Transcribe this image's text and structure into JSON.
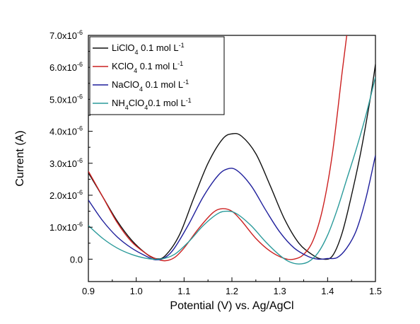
{
  "chart_data": {
    "type": "line",
    "xlabel": "Potential (V) vs. Ag/AgCl",
    "ylabel": "Current (A)",
    "xlim": [
      0.9,
      1.5
    ],
    "ylim": [
      -7e-07,
      7e-06
    ],
    "x_ticks": [
      {
        "value": 0.9,
        "label": "0.9"
      },
      {
        "value": 1.0,
        "label": "1.0"
      },
      {
        "value": 1.1,
        "label": "1.1"
      },
      {
        "value": 1.2,
        "label": "1.2"
      },
      {
        "value": 1.3,
        "label": "1.3"
      },
      {
        "value": 1.4,
        "label": "1.4"
      },
      {
        "value": 1.5,
        "label": "1.5"
      }
    ],
    "y_ticks": [
      {
        "value": 0.0,
        "mant": "0.0",
        "exp": ""
      },
      {
        "value": 1e-06,
        "mant": "1.0x10",
        "exp": "-6"
      },
      {
        "value": 2e-06,
        "mant": "2.0x10",
        "exp": "-6"
      },
      {
        "value": 3e-06,
        "mant": "3.0x10",
        "exp": "-6"
      },
      {
        "value": 4e-06,
        "mant": "4.0x10",
        "exp": "-6"
      },
      {
        "value": 5e-06,
        "mant": "5.0x10",
        "exp": "-6"
      },
      {
        "value": 6e-06,
        "mant": "6.0x10",
        "exp": "-6"
      },
      {
        "value": 7e-06,
        "mant": "7.0x10",
        "exp": "-6"
      }
    ],
    "legend_placement": "top-left",
    "series": [
      {
        "name": "LiClO4 0.1 mol L-1",
        "legend_parts": [
          {
            "t": "LiClO"
          },
          {
            "t": "4",
            "sub": true
          },
          {
            "t": " 0.1 mol L"
          },
          {
            "t": "-1",
            "sup": true
          }
        ],
        "color": "#111111",
        "points": [
          [
            0.9,
            2.7e-06
          ],
          [
            0.93,
            1.95e-06
          ],
          [
            0.96,
            1.2e-06
          ],
          [
            0.99,
            6e-07
          ],
          [
            1.02,
            1.8e-07
          ],
          [
            1.04,
            2e-08
          ],
          [
            1.06,
            1e-07
          ],
          [
            1.09,
            7.5e-07
          ],
          [
            1.12,
            1.9e-06
          ],
          [
            1.15,
            3e-06
          ],
          [
            1.18,
            3.75e-06
          ],
          [
            1.2,
            3.92e-06
          ],
          [
            1.22,
            3.85e-06
          ],
          [
            1.25,
            3.3e-06
          ],
          [
            1.28,
            2.3e-06
          ],
          [
            1.31,
            1.25e-06
          ],
          [
            1.34,
            5e-07
          ],
          [
            1.37,
            1.2e-07
          ],
          [
            1.39,
            0.0
          ],
          [
            1.41,
            1e-07
          ],
          [
            1.43,
            8e-07
          ],
          [
            1.45,
            2e-06
          ],
          [
            1.47,
            3.4e-06
          ],
          [
            1.49,
            5.1e-06
          ],
          [
            1.5,
            6.1e-06
          ]
        ]
      },
      {
        "name": "KClO4 0.1 mol L-1",
        "legend_parts": [
          {
            "t": "KClO"
          },
          {
            "t": "4",
            "sub": true
          },
          {
            "t": " 0.1 mol L"
          },
          {
            "t": "-1",
            "sup": true
          }
        ],
        "color": "#cc2020",
        "points": [
          [
            0.9,
            2.75e-06
          ],
          [
            0.93,
            1.95e-06
          ],
          [
            0.96,
            1.15e-06
          ],
          [
            0.99,
            5.5e-07
          ],
          [
            1.02,
            1.8e-07
          ],
          [
            1.04,
            2e-08
          ],
          [
            1.06,
            -5e-08
          ],
          [
            1.08,
            5e-08
          ],
          [
            1.1,
            3.5e-07
          ],
          [
            1.13,
            9.5e-07
          ],
          [
            1.16,
            1.45e-06
          ],
          [
            1.18,
            1.58e-06
          ],
          [
            1.2,
            1.5e-06
          ],
          [
            1.22,
            1.2e-06
          ],
          [
            1.25,
            6.5e-07
          ],
          [
            1.28,
            2.5e-07
          ],
          [
            1.31,
            2e-08
          ],
          [
            1.33,
            0.0
          ],
          [
            1.35,
            1.5e-07
          ],
          [
            1.37,
            6e-07
          ],
          [
            1.39,
            1.6e-06
          ],
          [
            1.41,
            3.3e-06
          ],
          [
            1.43,
            5.8e-06
          ],
          [
            1.44,
            7e-06
          ]
        ]
      },
      {
        "name": "NaClO4 0.1 mol L-1",
        "legend_parts": [
          {
            "t": "NaClO"
          },
          {
            "t": "4",
            "sub": true
          },
          {
            "t": " 0.1 mol L"
          },
          {
            "t": "-1",
            "sup": true
          }
        ],
        "color": "#1f1f9c",
        "points": [
          [
            0.9,
            1.85e-06
          ],
          [
            0.93,
            1.2e-06
          ],
          [
            0.96,
            7e-07
          ],
          [
            0.99,
            3.5e-07
          ],
          [
            1.02,
            1e-07
          ],
          [
            1.04,
            -2e-08
          ],
          [
            1.06,
            5e-08
          ],
          [
            1.08,
            3.5e-07
          ],
          [
            1.11,
            1.1e-06
          ],
          [
            1.14,
            1.95e-06
          ],
          [
            1.17,
            2.6e-06
          ],
          [
            1.19,
            2.82e-06
          ],
          [
            1.21,
            2.78e-06
          ],
          [
            1.24,
            2.3e-06
          ],
          [
            1.27,
            1.55e-06
          ],
          [
            1.3,
            8.5e-07
          ],
          [
            1.33,
            3.5e-07
          ],
          [
            1.36,
            8e-08
          ],
          [
            1.38,
            0.0
          ],
          [
            1.4,
            2e-08
          ],
          [
            1.42,
            5e-08
          ],
          [
            1.44,
            3.5e-07
          ],
          [
            1.46,
            9e-07
          ],
          [
            1.48,
            1.9e-06
          ],
          [
            1.5,
            3.25e-06
          ]
        ]
      },
      {
        "name": "NH4ClO40.1 mol L-1",
        "legend_parts": [
          {
            "t": "NH"
          },
          {
            "t": "4",
            "sub": true
          },
          {
            "t": "ClO"
          },
          {
            "t": "4",
            "sub": true
          },
          {
            "t": "0.1 mol L"
          },
          {
            "t": "-1",
            "sup": true
          }
        ],
        "color": "#2a9a9a",
        "points": [
          [
            0.9,
            1.05e-06
          ],
          [
            0.93,
            6.5e-07
          ],
          [
            0.96,
            3.5e-07
          ],
          [
            0.99,
            1.5e-07
          ],
          [
            1.02,
            3e-08
          ],
          [
            1.05,
            0.0
          ],
          [
            1.08,
            1.5e-07
          ],
          [
            1.11,
            5.5e-07
          ],
          [
            1.14,
            1.05e-06
          ],
          [
            1.17,
            1.42e-06
          ],
          [
            1.19,
            1.5e-06
          ],
          [
            1.21,
            1.42e-06
          ],
          [
            1.24,
            1.05e-06
          ],
          [
            1.27,
            5.5e-07
          ],
          [
            1.3,
            1.2e-07
          ],
          [
            1.32,
            -8e-08
          ],
          [
            1.34,
            -1.5e-07
          ],
          [
            1.36,
            -8e-08
          ],
          [
            1.38,
            2e-07
          ],
          [
            1.4,
            7.5e-07
          ],
          [
            1.42,
            1.55e-06
          ],
          [
            1.44,
            2.5e-06
          ],
          [
            1.46,
            3.45e-06
          ],
          [
            1.48,
            4.5e-06
          ],
          [
            1.5,
            5.7e-06
          ]
        ]
      }
    ]
  }
}
